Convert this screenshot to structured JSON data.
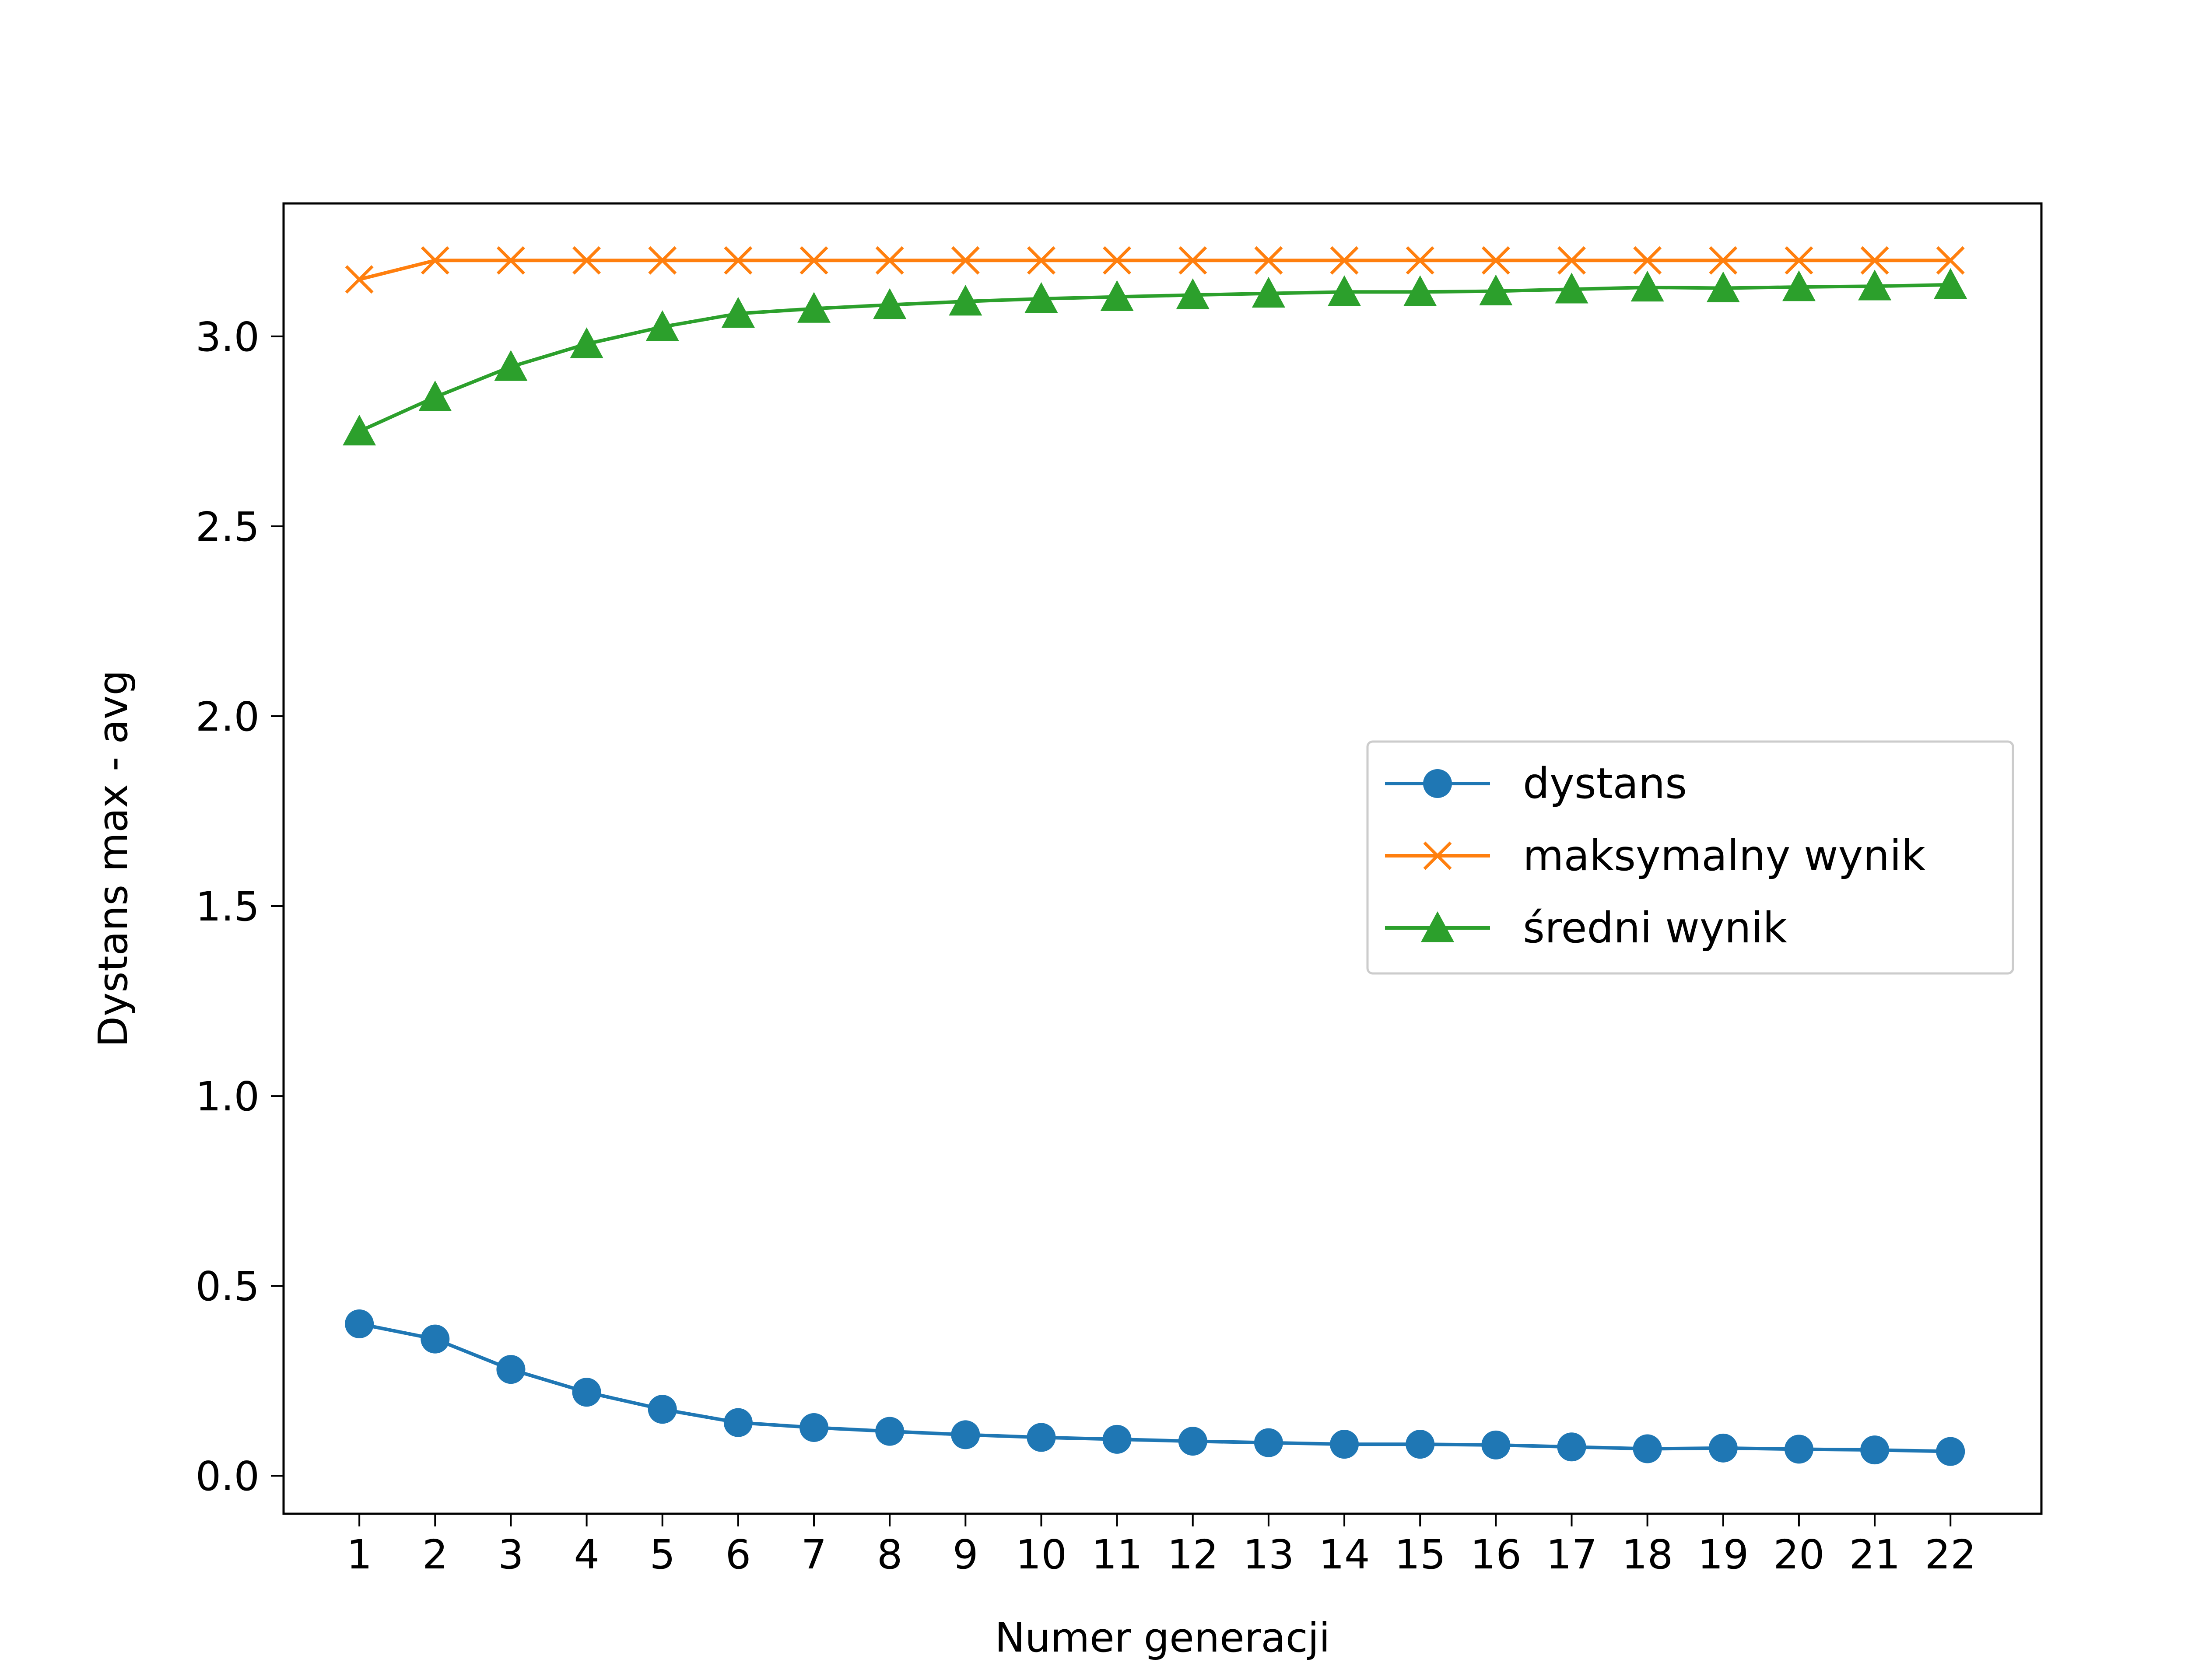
{
  "chart_data": {
    "type": "line",
    "xlabel": "Numer generacji",
    "ylabel": "Dystans max - avg",
    "x": [
      1,
      2,
      3,
      4,
      5,
      6,
      7,
      8,
      9,
      10,
      11,
      12,
      13,
      14,
      15,
      16,
      17,
      18,
      19,
      20,
      21,
      22
    ],
    "xlim": [
      0,
      23.2
    ],
    "ylim": [
      -0.1,
      3.35
    ],
    "yticks": [
      0.0,
      0.5,
      1.0,
      1.5,
      2.0,
      2.5,
      3.0
    ],
    "ytick_labels": [
      "0.0",
      "0.5",
      "1.0",
      "1.5",
      "2.0",
      "2.5",
      "3.0"
    ],
    "xtick_labels": [
      "1",
      "2",
      "3",
      "4",
      "5",
      "6",
      "7",
      "8",
      "9",
      "10",
      "11",
      "12",
      "13",
      "14",
      "15",
      "16",
      "17",
      "18",
      "19",
      "20",
      "21",
      "22"
    ],
    "legend_position": "center-right",
    "grid": false,
    "series": [
      {
        "name": "dystans",
        "color": "#1f77b4",
        "marker": "circle",
        "values": [
          0.4,
          0.36,
          0.28,
          0.22,
          0.175,
          0.14,
          0.127,
          0.117,
          0.108,
          0.101,
          0.096,
          0.091,
          0.087,
          0.083,
          0.083,
          0.081,
          0.076,
          0.071,
          0.073,
          0.07,
          0.068,
          0.064
        ]
      },
      {
        "name": "maksymalny wynik",
        "color": "#ff7f0e",
        "marker": "x",
        "values": [
          3.15,
          3.2,
          3.2,
          3.2,
          3.2,
          3.2,
          3.2,
          3.2,
          3.2,
          3.2,
          3.2,
          3.2,
          3.2,
          3.2,
          3.2,
          3.2,
          3.2,
          3.2,
          3.2,
          3.2,
          3.2,
          3.2
        ]
      },
      {
        "name": "średni wynik",
        "color": "#2ca02c",
        "marker": "triangle",
        "values": [
          2.75,
          2.84,
          2.92,
          2.98,
          3.025,
          3.06,
          3.073,
          3.083,
          3.092,
          3.099,
          3.104,
          3.109,
          3.113,
          3.117,
          3.117,
          3.119,
          3.124,
          3.129,
          3.127,
          3.13,
          3.132,
          3.136
        ]
      }
    ]
  }
}
